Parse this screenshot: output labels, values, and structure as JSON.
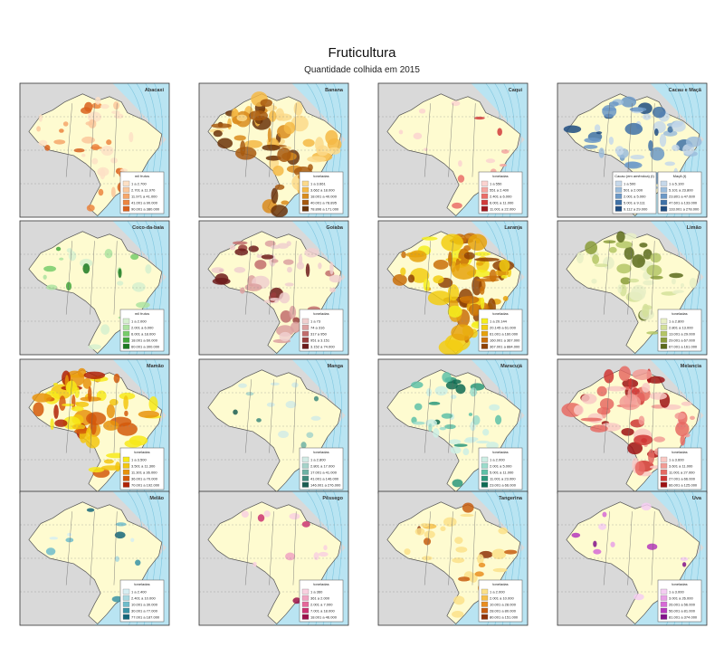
{
  "header": {
    "title": "Fruticultura",
    "subtitle": "Quantidade colhida em 2015"
  },
  "panels": [
    {
      "name": "Abacaxi",
      "colors": [
        "#fde0c5",
        "#fbc79b",
        "#f6a66a",
        "#ec8540",
        "#d9601c"
      ],
      "intensity": 1,
      "legends": [
        {
          "title": "mil frutos",
          "classes": [
            "1 a 2.700",
            "2.701 a 11.970",
            "11.971 a 41.000",
            "41.001 a 90.000",
            "90.001 a 380.000"
          ]
        }
      ]
    },
    {
      "name": "Banana",
      "colors": [
        "#fbd98a",
        "#f5b845",
        "#d98b1c",
        "#a7590f",
        "#6b3309"
      ],
      "intensity": 3,
      "legends": [
        {
          "title": "toneladas",
          "classes": [
            "1 a 3.661",
            "3.662 a 18.000",
            "18.001 a 40.000",
            "40.001 a 78.895",
            "78.896 a 171.000"
          ]
        }
      ]
    },
    {
      "name": "Caqui",
      "colors": [
        "#fbd3d0",
        "#f5a5a0",
        "#ea6d68",
        "#d23b3b",
        "#a11a1f"
      ],
      "intensity": 0,
      "legends": [
        {
          "title": "toneladas",
          "classes": [
            "1 a 550",
            "551 a 2.400",
            "2.401 a 6.000",
            "6.001 a 11.000",
            "11.001 a 22.000"
          ]
        }
      ]
    },
    {
      "name": "Cacau e Maçã",
      "colors": [
        "#c6d8ea",
        "#9bbcdc",
        "#6b98c6",
        "#3f71a7",
        "#1f4c80"
      ],
      "intensity": 2,
      "legends": [
        {
          "title": "Cacau (em amêndoa) (t)",
          "classes": [
            "1 a 500",
            "501 a 2.000",
            "2.001 a 5.000",
            "5.001 a 9.111",
            "9.112 a 29.000"
          ]
        },
        {
          "title": "Maçã (t)",
          "classes": [
            "1 a 5.100",
            "5.101 a 23.800",
            "23.801 a 47.600",
            "47.601 a 133.000",
            "133.001 a 278.000"
          ]
        }
      ]
    },
    {
      "name": "Coco-da-baía",
      "colors": [
        "#d6f0cf",
        "#ade3a0",
        "#78cc6b",
        "#43a83c",
        "#1d7a22"
      ],
      "intensity": 1,
      "legends": [
        {
          "title": "mil frutos",
          "classes": [
            "1 a 2.000",
            "2.001 a 6.000",
            "6.001 a 18.000",
            "18.001 a 60.000",
            "60.001 a 300.000"
          ]
        }
      ]
    },
    {
      "name": "Goiaba",
      "colors": [
        "#f0cfcf",
        "#dca0a0",
        "#c26d6d",
        "#9a3d3d",
        "#6d1b1b"
      ],
      "intensity": 2,
      "legends": [
        {
          "title": "toneladas",
          "classes": [
            "1 a 73",
            "74 a 316",
            "317 a 950",
            "951 a 3.151",
            "3.152 a 74.000"
          ]
        }
      ]
    },
    {
      "name": "Laranja",
      "colors": [
        "#f5ee1f",
        "#f2cd12",
        "#e6a20c",
        "#c96e08",
        "#8f4204"
      ],
      "intensity": 4,
      "legends": [
        {
          "title": "toneladas",
          "classes": [
            "1 a 20.144",
            "20.145 a 61.000",
            "61.001 a 160.000",
            "160.001 a 367.000",
            "367.001 a 884.000"
          ]
        }
      ]
    },
    {
      "name": "Limão",
      "colors": [
        "#e8efc5",
        "#d3e09a",
        "#b4c566",
        "#8a9c3a",
        "#5b6a1c"
      ],
      "intensity": 2,
      "legends": [
        {
          "title": "toneladas",
          "classes": [
            "1 a 2.800",
            "2.801 a 13.000",
            "13.001 a 29.000",
            "29.001 a 67.000",
            "67.001 a 161.000"
          ]
        }
      ]
    },
    {
      "name": "Mamão",
      "colors": [
        "#f7e91a",
        "#f3c60f",
        "#e8930d",
        "#d4590a",
        "#b02206"
      ],
      "intensity": 3,
      "legends": [
        {
          "title": "toneladas",
          "classes": [
            "1 a 3.500",
            "3.501 a 11.300",
            "11.301 a 36.000",
            "36.001 a 70.000",
            "70.001 a 192.000"
          ]
        }
      ]
    },
    {
      "name": "Manga",
      "colors": [
        "#d2ebe6",
        "#a6d3ca",
        "#6fb2a5",
        "#3f8a7c",
        "#1b5d52"
      ],
      "intensity": 0,
      "legends": [
        {
          "title": "toneladas",
          "classes": [
            "1 a 2.800",
            "2.801 a 17.000",
            "17.001 a 41.000",
            "41.001 a 146.000",
            "146.001 a 276.000"
          ]
        }
      ]
    },
    {
      "name": "Maracujá",
      "colors": [
        "#cdeee5",
        "#9bdccc",
        "#5fc1a8",
        "#2b987c",
        "#0f6b54"
      ],
      "intensity": 1,
      "legends": [
        {
          "title": "toneladas",
          "classes": [
            "1 a 2.000",
            "2.001 a 5.000",
            "5.001 a 11.000",
            "11.001 a 23.000",
            "23.001 a 66.000"
          ]
        }
      ]
    },
    {
      "name": "Melancia",
      "colors": [
        "#f9c9c4",
        "#f29b94",
        "#e66a63",
        "#cf3634",
        "#9d1214"
      ],
      "intensity": 3,
      "legends": [
        {
          "title": "toneladas",
          "classes": [
            "1 a 3.600",
            "3.601 a 11.000",
            "11.001 a 27.000",
            "27.001 a 66.000",
            "66.001 a 125.000"
          ]
        }
      ]
    },
    {
      "name": "Melão",
      "colors": [
        "#d6eef2",
        "#a9d9e1",
        "#6fbccb",
        "#3a93a6",
        "#15667a"
      ],
      "intensity": 0,
      "legends": [
        {
          "title": "toneladas",
          "classes": [
            "1 a 2.400",
            "2.401 a 10.000",
            "10.001 a 30.000",
            "30.001 a 77.000",
            "77.001 a 187.000"
          ]
        }
      ]
    },
    {
      "name": "Pêssego",
      "colors": [
        "#f9d0e0",
        "#f1a3c2",
        "#e5699b",
        "#cc3372",
        "#9c114b"
      ],
      "intensity": 0,
      "legends": [
        {
          "title": "toneladas",
          "classes": [
            "1 a 360",
            "361 a 2.000",
            "2.001 a 7.000",
            "7.001 a 18.000",
            "18.001 a 46.000"
          ]
        }
      ]
    },
    {
      "name": "Tangerina",
      "colors": [
        "#fbe08a",
        "#f6bf4a",
        "#e98e20",
        "#c75d10",
        "#8e3208"
      ],
      "intensity": 1,
      "legends": [
        {
          "title": "toneladas",
          "classes": [
            "1 a 2.000",
            "2.001 a 10.000",
            "10.001 a 28.000",
            "28.001 a 80.000",
            "80.001 a 151.000"
          ]
        }
      ]
    },
    {
      "name": "Uva",
      "colors": [
        "#f4cdf2",
        "#e8a0e6",
        "#d66ad6",
        "#b537bc",
        "#82128b"
      ],
      "intensity": 0,
      "legends": [
        {
          "title": "toneladas",
          "classes": [
            "1 a 3.000",
            "3.001 a 26.000",
            "26.001 a 56.000",
            "56.001 a 81.000",
            "81.001 a 374.000"
          ]
        }
      ]
    }
  ]
}
